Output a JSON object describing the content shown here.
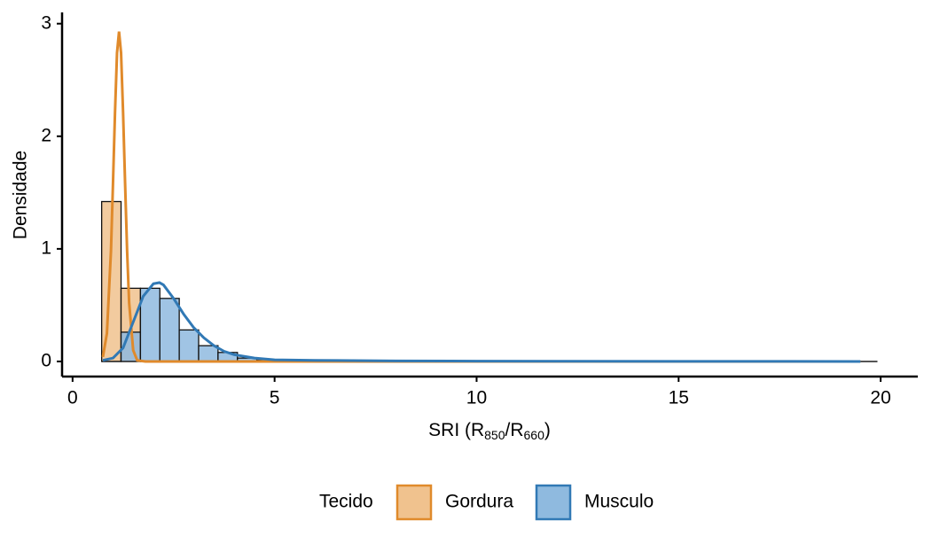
{
  "chart_data": {
    "type": "histogram",
    "x_label": [
      "SRI (R",
      "850",
      "/R",
      "660",
      ")"
    ],
    "y_label": "Densidade",
    "legend_title": "Tecido",
    "legend_position": "bottom",
    "xlim": [
      -0.26,
      20.92
    ],
    "ylim": [
      -0.134,
      3.1
    ],
    "xticks": [
      0,
      5,
      10,
      15,
      20
    ],
    "yticks": [
      0,
      1,
      2,
      3
    ],
    "bins": [
      0.72,
      1.2,
      1.68,
      2.16,
      2.64,
      3.12,
      3.6,
      4.08,
      4.56,
      5.04,
      5.52,
      6,
      6.48,
      6.96,
      7.44,
      7.92,
      8.4,
      8.88,
      9.36,
      9.84,
      10.32,
      10.8,
      11.28,
      11.76,
      12.24,
      12.72,
      13.2,
      13.68,
      14.16,
      14.64,
      15.12,
      15.6,
      16.08,
      16.56,
      17.04,
      17.52,
      18,
      18.48,
      18.96,
      19.44,
      19.92
    ],
    "series": [
      {
        "name": "Gordura",
        "color": "#e08a2b",
        "fill": "#f0c28e",
        "values": [
          1.42,
          0.65,
          0,
          0,
          0,
          0,
          0,
          0,
          0,
          0,
          0,
          0,
          0,
          0,
          0,
          0,
          0,
          0,
          0,
          0,
          0,
          0,
          0,
          0,
          0,
          0,
          0,
          0,
          0,
          0,
          0,
          0,
          0,
          0,
          0,
          0,
          0,
          0,
          0,
          0
        ],
        "density_x": [
          0.75,
          0.85,
          0.95,
          1.0,
          1.05,
          1.1,
          1.15,
          1.2,
          1.25,
          1.3,
          1.35,
          1.4,
          1.5,
          1.6,
          1.8,
          2.2,
          3,
          5,
          8,
          12,
          16,
          19.5
        ],
        "density_y": [
          0.04,
          0.25,
          0.98,
          1.58,
          2.21,
          2.74,
          2.93,
          2.74,
          2.21,
          1.58,
          0.98,
          0.52,
          0.1,
          0.01,
          0,
          0,
          0,
          0,
          0,
          0,
          0,
          0
        ]
      },
      {
        "name": "Musculo",
        "color": "#3179b5",
        "fill": "#8fbadf",
        "values": [
          0,
          0.26,
          0.65,
          0.56,
          0.28,
          0.14,
          0.08,
          0.03,
          0.01,
          0.01,
          0,
          0,
          0,
          0,
          0,
          0,
          0,
          0,
          0,
          0,
          0,
          0,
          0,
          0,
          0,
          0,
          0,
          0,
          0,
          0,
          0,
          0,
          0,
          0,
          0,
          0,
          0,
          0,
          0,
          0
        ],
        "density_x": [
          0.75,
          1.0,
          1.25,
          1.5,
          1.75,
          2.0,
          2.15,
          2.25,
          2.5,
          2.75,
          3.0,
          3.25,
          3.5,
          3.75,
          4.0,
          4.5,
          5,
          6,
          8,
          10,
          12,
          15,
          19.5
        ],
        "density_y": [
          0.01,
          0.03,
          0.12,
          0.35,
          0.58,
          0.69,
          0.7,
          0.68,
          0.56,
          0.42,
          0.3,
          0.21,
          0.14,
          0.09,
          0.06,
          0.03,
          0.015,
          0.01,
          0.005,
          0.003,
          0.002,
          0.001,
          0
        ]
      }
    ]
  }
}
